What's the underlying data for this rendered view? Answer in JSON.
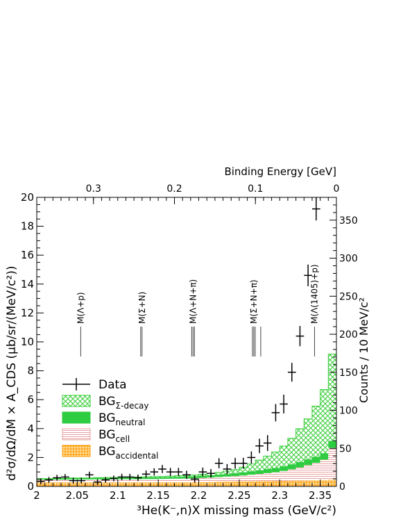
{
  "chart_data": {
    "type": "bar",
    "xlabel": "³He(K⁻,n)X missing mass (GeV/c²)",
    "ylabel_left": "d²σ/dΩ/dM × A_CDS (μb/sr/(MeV/c²))",
    "ylabel_right": "Counts / 10 MeV/c²",
    "top_axis_label": "Binding Energy [GeV]",
    "xlim": [
      2.0,
      2.37
    ],
    "ylim": [
      0,
      20
    ],
    "right_ylim": [
      0,
      380
    ],
    "top_xlim": [
      0.37,
      0.0
    ],
    "x_ticks": [
      "2",
      "2.05",
      "2.1",
      "2.15",
      "2.2",
      "2.25",
      "2.3",
      "2.35"
    ],
    "y_ticks": [
      "0",
      "2",
      "4",
      "6",
      "8",
      "10",
      "12",
      "14",
      "16",
      "18",
      "20"
    ],
    "right_ticks": [
      "0",
      "50",
      "100",
      "150",
      "200",
      "250",
      "300",
      "350"
    ],
    "top_ticks": [
      "0.3",
      "0.2",
      "0.1",
      "0"
    ],
    "thresholds": [
      {
        "label": "M(Λ+p)",
        "x": 2.0543
      },
      {
        "label": "M(Σ+N)",
        "x": 2.13
      },
      {
        "label": "M(Λ+N+π)",
        "x": 2.193
      },
      {
        "label": "M(Σ+N+π)",
        "x": 2.268
      },
      {
        "label": "M(Λ(1405)+p)",
        "x": 2.343
      }
    ],
    "legend": {
      "position": "center-left",
      "entries": [
        {
          "label": "Data",
          "sub": ""
        },
        {
          "label": "BG",
          "sub": "Σ-decay"
        },
        {
          "label": "BG",
          "sub": "neutral"
        },
        {
          "label": "BG",
          "sub": "cell"
        },
        {
          "label": "BG",
          "sub": "accidental"
        }
      ]
    },
    "colors": {
      "sigma_decay": "#33cc33",
      "neutral": "#2ecc40",
      "cell": "#e8a0a0",
      "accidental": "#ff9900",
      "data": "#000000"
    },
    "bin_width": 0.01,
    "bin_starts": [
      2.0,
      2.01,
      2.02,
      2.03,
      2.04,
      2.05,
      2.06,
      2.07,
      2.08,
      2.09,
      2.1,
      2.11,
      2.12,
      2.13,
      2.14,
      2.15,
      2.16,
      2.17,
      2.18,
      2.19,
      2.2,
      2.21,
      2.22,
      2.23,
      2.24,
      2.25,
      2.26,
      2.27,
      2.28,
      2.29,
      2.3,
      2.31,
      2.32,
      2.33,
      2.34,
      2.35,
      2.36
    ],
    "series": [
      {
        "name": "BG accidental",
        "values": [
          0.28,
          0.28,
          0.28,
          0.28,
          0.28,
          0.28,
          0.28,
          0.28,
          0.28,
          0.28,
          0.28,
          0.28,
          0.28,
          0.28,
          0.28,
          0.28,
          0.28,
          0.28,
          0.28,
          0.28,
          0.29,
          0.3,
          0.31,
          0.32,
          0.33,
          0.34,
          0.35,
          0.36,
          0.37,
          0.38,
          0.39,
          0.4,
          0.41,
          0.42,
          0.43,
          0.45,
          0.47
        ]
      },
      {
        "name": "BG cell",
        "values": [
          0.18,
          0.18,
          0.19,
          0.19,
          0.2,
          0.2,
          0.2,
          0.21,
          0.21,
          0.21,
          0.22,
          0.22,
          0.22,
          0.23,
          0.23,
          0.24,
          0.25,
          0.26,
          0.27,
          0.28,
          0.3,
          0.32,
          0.34,
          0.36,
          0.38,
          0.42,
          0.46,
          0.5,
          0.55,
          0.6,
          0.68,
          0.78,
          0.9,
          1.05,
          1.2,
          1.4,
          2.2
        ]
      },
      {
        "name": "BG neutral",
        "values": [
          0.06,
          0.06,
          0.07,
          0.07,
          0.08,
          0.08,
          0.08,
          0.09,
          0.09,
          0.1,
          0.1,
          0.1,
          0.11,
          0.11,
          0.12,
          0.12,
          0.12,
          0.13,
          0.14,
          0.14,
          0.15,
          0.16,
          0.17,
          0.18,
          0.2,
          0.22,
          0.24,
          0.26,
          0.28,
          0.3,
          0.32,
          0.35,
          0.38,
          0.4,
          0.42,
          0.45,
          0.48
        ]
      },
      {
        "name": "BG Σ-decay",
        "values": [
          0.02,
          0.02,
          0.02,
          0.02,
          0.02,
          0.02,
          0.02,
          0.03,
          0.03,
          0.03,
          0.03,
          0.04,
          0.04,
          0.05,
          0.05,
          0.05,
          0.06,
          0.07,
          0.08,
          0.09,
          0.1,
          0.12,
          0.15,
          0.2,
          0.25,
          0.35,
          0.5,
          0.7,
          0.9,
          1.1,
          1.4,
          1.8,
          2.3,
          2.8,
          3.5,
          4.4,
          6.0
        ]
      }
    ],
    "data_points": {
      "x": [
        2.005,
        2.015,
        2.025,
        2.035,
        2.045,
        2.055,
        2.065,
        2.075,
        2.085,
        2.095,
        2.105,
        2.115,
        2.125,
        2.135,
        2.145,
        2.155,
        2.165,
        2.175,
        2.185,
        2.195,
        2.205,
        2.215,
        2.225,
        2.235,
        2.245,
        2.255,
        2.265,
        2.275,
        2.285,
        2.295,
        2.305,
        2.315,
        2.325,
        2.335,
        2.345
      ],
      "y": [
        0.35,
        0.45,
        0.6,
        0.65,
        0.4,
        0.4,
        0.8,
        0.3,
        0.45,
        0.55,
        0.65,
        0.65,
        0.6,
        0.85,
        1.0,
        1.2,
        1.0,
        1.0,
        0.8,
        0.5,
        1.0,
        0.9,
        1.6,
        1.2,
        1.6,
        1.6,
        2.0,
        2.8,
        3.0,
        5.1,
        5.7,
        7.9,
        10.4,
        14.6,
        19.2
      ],
      "err": [
        0.2,
        0.2,
        0.2,
        0.2,
        0.2,
        0.2,
        0.22,
        0.2,
        0.2,
        0.2,
        0.22,
        0.22,
        0.22,
        0.25,
        0.25,
        0.28,
        0.28,
        0.28,
        0.28,
        0.25,
        0.3,
        0.3,
        0.35,
        0.35,
        0.38,
        0.38,
        0.42,
        0.5,
        0.55,
        0.6,
        0.65,
        0.65,
        0.7,
        0.75,
        0.8
      ]
    }
  }
}
